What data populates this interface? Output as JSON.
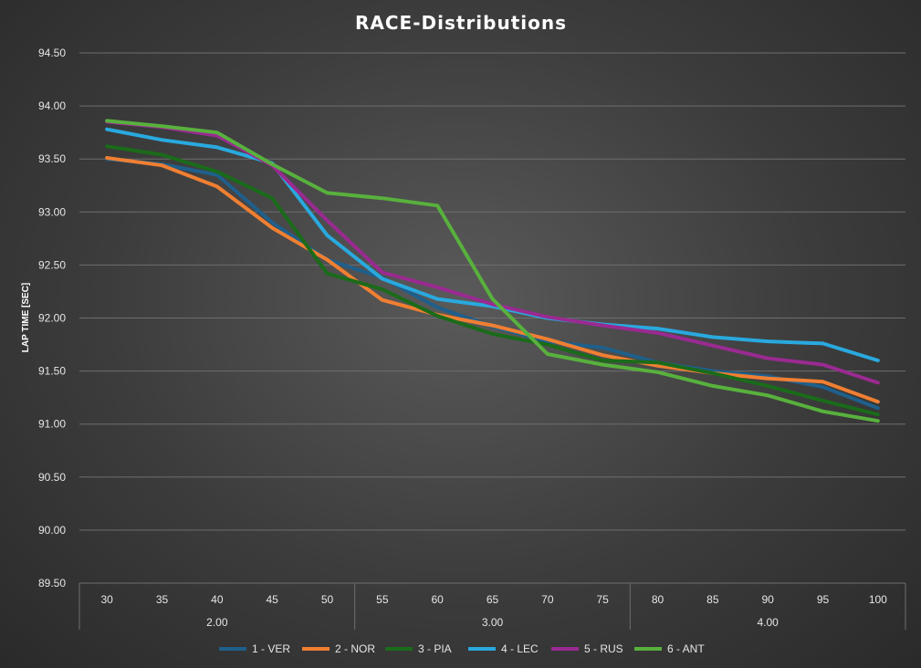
{
  "chart_data": {
    "type": "line",
    "title": "RACE-Distributions",
    "ylabel": "LAP TIME [SEC]",
    "xlabel": "",
    "ylim": [
      89.5,
      94.5
    ],
    "y_ticks": [
      "89.50",
      "90.00",
      "90.50",
      "91.00",
      "91.50",
      "92.00",
      "92.50",
      "93.00",
      "93.50",
      "94.00",
      "94.50"
    ],
    "categories": [
      "30",
      "35",
      "40",
      "45",
      "50",
      "55",
      "60",
      "65",
      "70",
      "75",
      "80",
      "85",
      "90",
      "95",
      "100"
    ],
    "groups": [
      {
        "label": "2.00",
        "span": [
          0,
          4
        ]
      },
      {
        "label": "3.00",
        "span": [
          5,
          9
        ]
      },
      {
        "label": "4.00",
        "span": [
          10,
          14
        ]
      }
    ],
    "grid": true,
    "legend": "bottom",
    "series": [
      {
        "name": "1 - VER",
        "color": "#1f5f8b",
        "values": [
          93.5,
          93.45,
          93.35,
          92.9,
          92.55,
          92.38,
          92.1,
          91.92,
          91.78,
          91.72,
          91.58,
          91.5,
          91.45,
          91.35,
          91.15
        ]
      },
      {
        "name": "2 - NOR",
        "color": "#f07f32",
        "values": [
          93.51,
          93.44,
          93.24,
          92.85,
          92.55,
          92.17,
          92.03,
          91.93,
          91.8,
          91.65,
          91.55,
          91.48,
          91.43,
          91.4,
          91.21
        ]
      },
      {
        "name": "3 - PIA",
        "color": "#1a6b1a",
        "values": [
          93.62,
          93.54,
          93.38,
          93.13,
          92.42,
          92.27,
          92.02,
          91.85,
          91.75,
          91.6,
          91.58,
          91.48,
          91.36,
          91.22,
          91.09
        ]
      },
      {
        "name": "4 - LEC",
        "color": "#29a9de",
        "values": [
          93.78,
          93.68,
          93.61,
          93.46,
          92.78,
          92.37,
          92.18,
          92.11,
          92.0,
          91.94,
          91.9,
          91.82,
          91.78,
          91.76,
          91.6
        ]
      },
      {
        "name": "5 - RUS",
        "color": "#9a2a91",
        "values": [
          93.85,
          93.8,
          93.72,
          93.44,
          92.92,
          92.43,
          92.29,
          92.13,
          92.01,
          91.93,
          91.86,
          91.74,
          91.62,
          91.56,
          91.39
        ]
      },
      {
        "name": "6 - ANT",
        "color": "#58b13d",
        "values": [
          93.86,
          93.81,
          93.75,
          93.45,
          93.18,
          93.13,
          93.06,
          92.18,
          91.66,
          91.56,
          91.49,
          91.36,
          91.27,
          91.12,
          91.03
        ]
      }
    ]
  }
}
